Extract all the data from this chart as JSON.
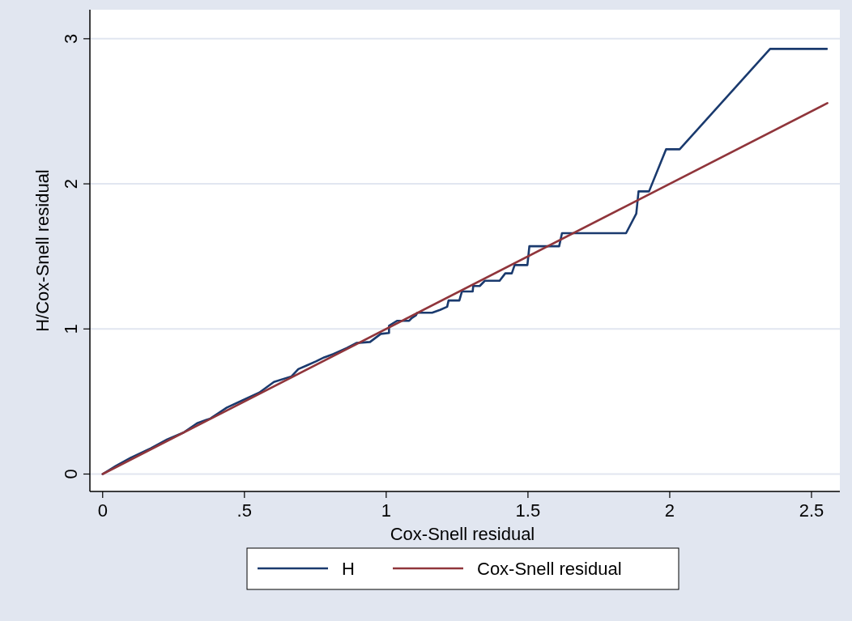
{
  "chart_data": {
    "type": "line",
    "xlabel": "Cox-Snell residual",
    "ylabel": "H/Cox-Snell residual",
    "xlim": [
      -0.045,
      2.6
    ],
    "ylim": [
      -0.12,
      3.2
    ],
    "xticks": [
      {
        "value": 0,
        "label": "0"
      },
      {
        "value": 0.5,
        "label": ".5"
      },
      {
        "value": 1,
        "label": "1"
      },
      {
        "value": 1.5,
        "label": "1.5"
      },
      {
        "value": 2,
        "label": "2"
      },
      {
        "value": 2.5,
        "label": "2.5"
      }
    ],
    "yticks": [
      0,
      1,
      2,
      3
    ],
    "grid": "y",
    "legend": "bottom",
    "line_style": "solid",
    "marker": "none",
    "series": [
      {
        "name": "H",
        "color": "#1a3a6e",
        "x": [
          0,
          0.047,
          0.099,
          0.17,
          0.228,
          0.285,
          0.333,
          0.38,
          0.438,
          0.49,
          0.552,
          0.604,
          0.666,
          0.69,
          0.719,
          0.752,
          0.781,
          0.814,
          0.819,
          0.862,
          0.895,
          0.943,
          0.981,
          1.01,
          1.01,
          1.038,
          1.081,
          1.09,
          1.105,
          1.11,
          1.162,
          1.19,
          1.215,
          1.22,
          1.258,
          1.267,
          1.305,
          1.307,
          1.33,
          1.348,
          1.4,
          1.42,
          1.443,
          1.453,
          1.498,
          1.505,
          1.61,
          1.62,
          1.846,
          1.882,
          1.89,
          1.927,
          1.987,
          2.035,
          2.354,
          2.554
        ],
        "values": [
          0,
          0.056,
          0.112,
          0.178,
          0.239,
          0.286,
          0.35,
          0.383,
          0.458,
          0.505,
          0.561,
          0.635,
          0.673,
          0.723,
          0.748,
          0.776,
          0.804,
          0.827,
          0.832,
          0.869,
          0.903,
          0.91,
          0.966,
          0.972,
          1.022,
          1.056,
          1.056,
          1.075,
          1.094,
          1.112,
          1.112,
          1.131,
          1.153,
          1.196,
          1.196,
          1.258,
          1.258,
          1.296,
          1.296,
          1.332,
          1.332,
          1.383,
          1.383,
          1.44,
          1.44,
          1.57,
          1.57,
          1.66,
          1.66,
          1.795,
          1.948,
          1.948,
          2.238,
          2.238,
          2.93,
          2.93
        ]
      },
      {
        "name": "Cox-Snell residual",
        "color": "#90353b",
        "x": [
          0,
          2.556
        ],
        "values": [
          0,
          2.556
        ]
      }
    ]
  }
}
